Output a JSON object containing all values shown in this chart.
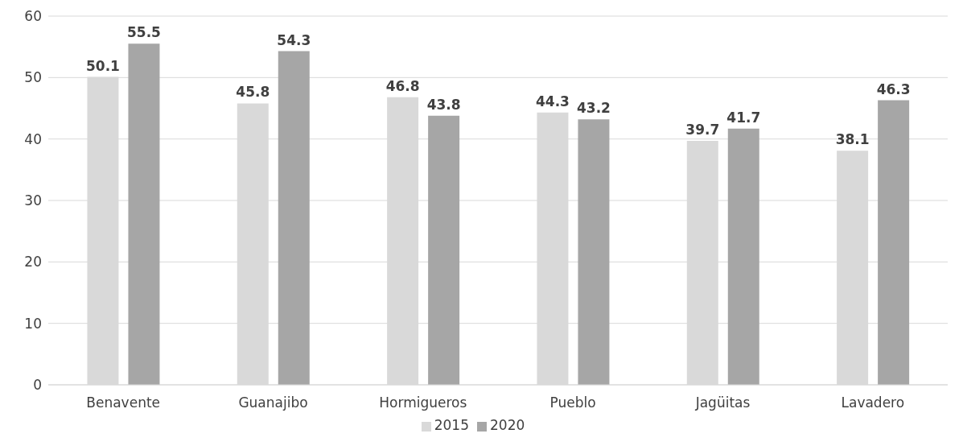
{
  "chart_data": {
    "type": "bar",
    "categories": [
      "Benavente",
      "Guanajibo",
      "Hormigueros",
      "Pueblo",
      "Jagüitas",
      "Lavadero"
    ],
    "series": [
      {
        "name": "2015",
        "color": "#d9d9d9",
        "values": [
          50.1,
          45.8,
          46.8,
          44.3,
          39.7,
          38.1
        ]
      },
      {
        "name": "2020",
        "color": "#a6a6a6",
        "values": [
          55.5,
          54.3,
          43.8,
          43.2,
          41.7,
          46.3
        ]
      }
    ],
    "ylim": [
      0,
      60
    ],
    "yticks": [
      0,
      10,
      20,
      30,
      40,
      50,
      60
    ],
    "grid": "y",
    "legend": "bottom",
    "data_labels": true
  }
}
